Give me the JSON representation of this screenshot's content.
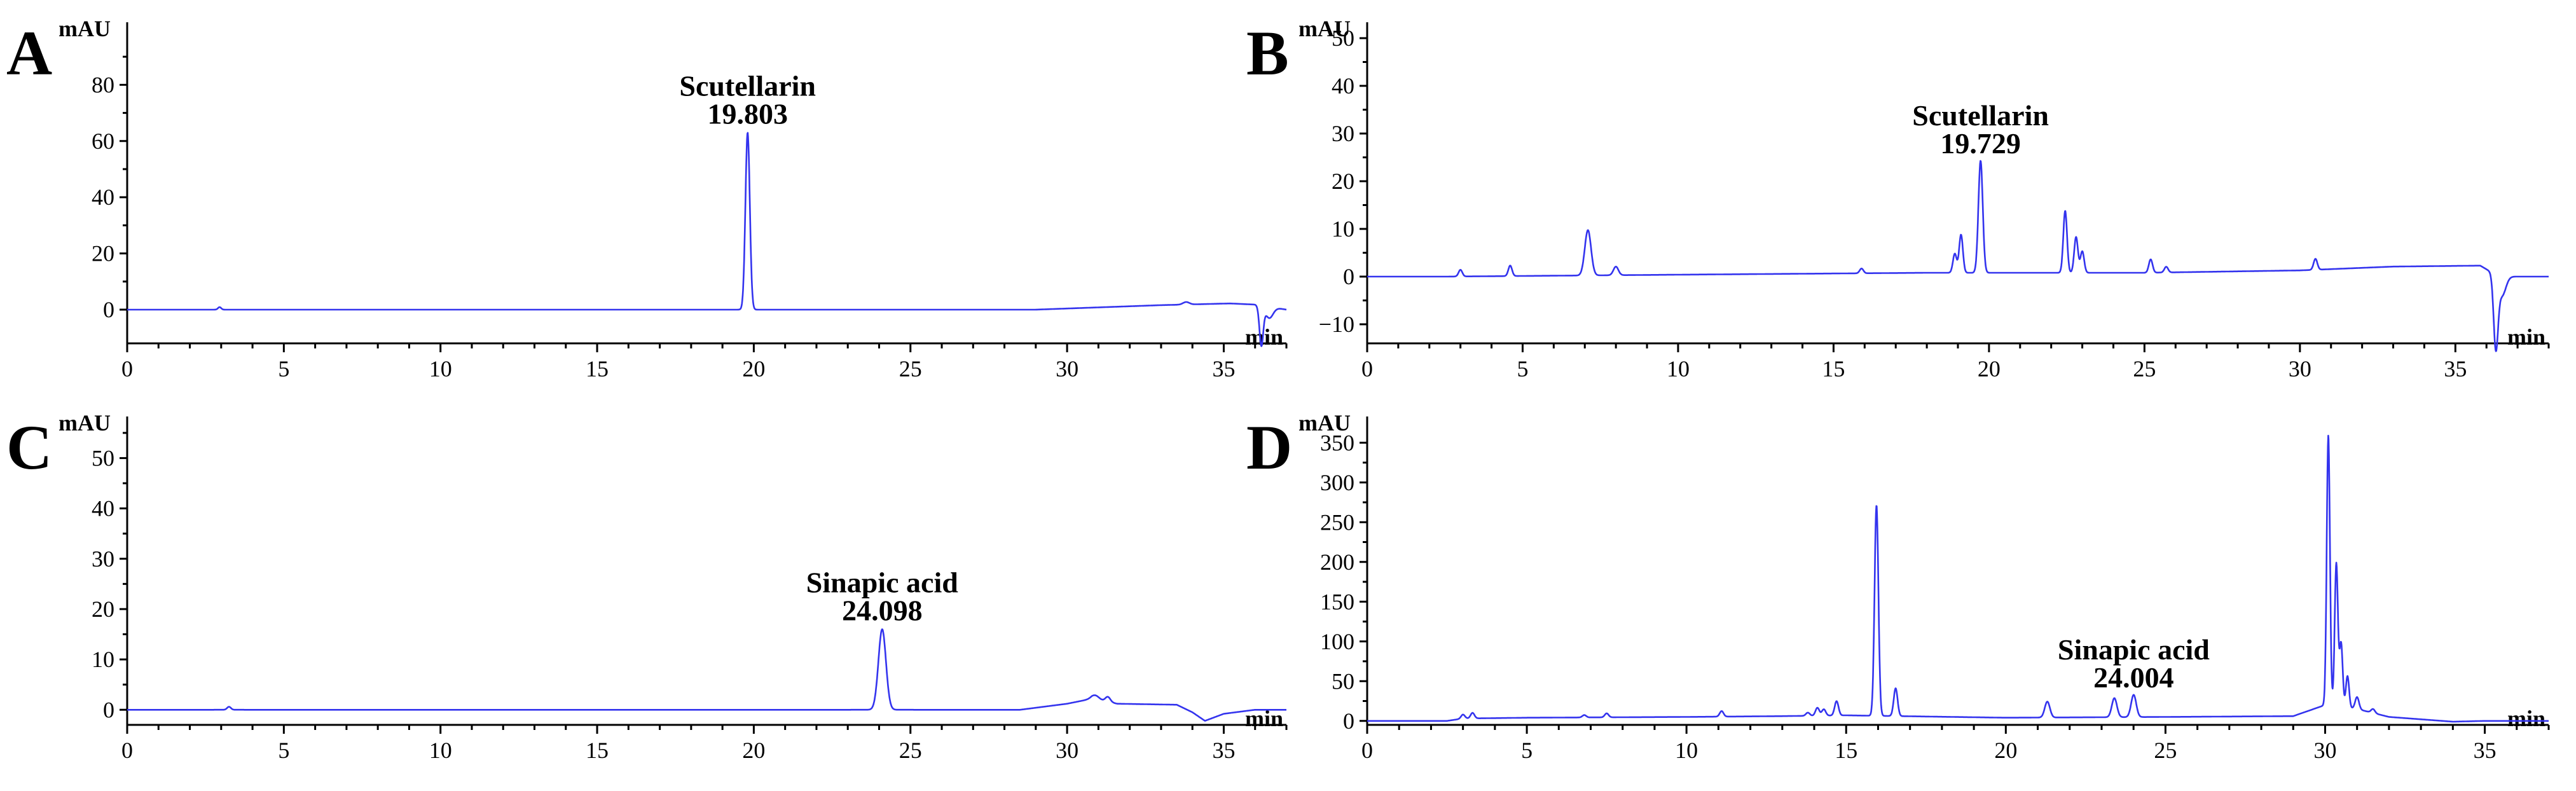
{
  "chart_data": [
    {
      "panel": "A",
      "type": "line",
      "ylabel": "mAU",
      "xlabel": "min",
      "xlim": [
        0,
        37
      ],
      "ylim": [
        -12,
        100
      ],
      "xticks": [
        0,
        5,
        10,
        15,
        20,
        25,
        30,
        35
      ],
      "yticks": [
        0,
        20,
        40,
        60,
        80
      ],
      "color": "#3333ee",
      "series": [
        {
          "baseline": [
            [
              0,
              0
            ],
            [
              3,
              0
            ],
            [
              29,
              0
            ],
            [
              31,
              0.8
            ],
            [
              33,
              1.6
            ],
            [
              35.2,
              2.2
            ],
            [
              36,
              1.8
            ],
            [
              37,
              0
            ]
          ],
          "peaks": [
            [
              19.803,
              63,
              0.07
            ],
            [
              2.95,
              0.9,
              0.05
            ],
            [
              33.8,
              0.9,
              0.1
            ],
            [
              36.2,
              -14,
              0.06
            ],
            [
              36.45,
              -4,
              0.12
            ]
          ]
        }
      ],
      "annotations": [
        {
          "x": 19.803,
          "y": 63,
          "name": "Scutellarin",
          "time": "19.803"
        }
      ]
    },
    {
      "panel": "B",
      "type": "line",
      "ylabel": "mAU",
      "xlabel": "min",
      "xlim": [
        0,
        38
      ],
      "ylim": [
        -14,
        52
      ],
      "xticks": [
        0,
        5,
        10,
        15,
        20,
        25,
        30,
        35
      ],
      "yticks": [
        -10,
        0,
        10,
        20,
        30,
        40,
        50
      ],
      "color": "#3333ee",
      "series": [
        {
          "baseline": [
            [
              0,
              0
            ],
            [
              2.5,
              0
            ],
            [
              10,
              0.4
            ],
            [
              18,
              0.8
            ],
            [
              25,
              0.8
            ],
            [
              30,
              1.3
            ],
            [
              33,
              2.1
            ],
            [
              35.8,
              2.3
            ],
            [
              36.4,
              0
            ],
            [
              38,
              0
            ]
          ],
          "peaks": [
            [
              3.0,
              1.4,
              0.06
            ],
            [
              4.6,
              2.2,
              0.06
            ],
            [
              7.1,
              9.5,
              0.1
            ],
            [
              8.0,
              1.8,
              0.08
            ],
            [
              15.9,
              1.0,
              0.06
            ],
            [
              18.9,
              4,
              0.06
            ],
            [
              19.1,
              8,
              0.06
            ],
            [
              19.729,
              23.5,
              0.07
            ],
            [
              22.45,
              13,
              0.06
            ],
            [
              22.8,
              7.5,
              0.06
            ],
            [
              23.0,
              4.5,
              0.06
            ],
            [
              25.2,
              2.8,
              0.06
            ],
            [
              25.7,
              1.2,
              0.06
            ],
            [
              30.5,
              2.3,
              0.06
            ],
            [
              36.3,
              -15,
              0.07
            ],
            [
              36.5,
              -4,
              0.12
            ]
          ]
        }
      ],
      "annotations": [
        {
          "x": 19.729,
          "y": 24,
          "name": "Scutellarin",
          "time": "19.729"
        }
      ]
    },
    {
      "panel": "C",
      "type": "line",
      "ylabel": "mAU",
      "xlabel": "min",
      "xlim": [
        0,
        37
      ],
      "ylim": [
        -3,
        57
      ],
      "xticks": [
        0,
        5,
        10,
        15,
        20,
        25,
        30,
        35
      ],
      "yticks": [
        0,
        10,
        20,
        30,
        40,
        50
      ],
      "color": "#3333ee",
      "series": [
        {
          "baseline": [
            [
              0,
              0
            ],
            [
              28.5,
              0
            ],
            [
              30,
              1.2
            ],
            [
              30.8,
              2.2
            ],
            [
              31.6,
              1.2
            ],
            [
              33.5,
              1.0
            ],
            [
              34,
              -0.5
            ],
            [
              34.4,
              -2.2
            ],
            [
              35,
              -0.8
            ],
            [
              36,
              0
            ],
            [
              37,
              0
            ]
          ],
          "peaks": [
            [
              24.098,
              16,
              0.12
            ],
            [
              3.25,
              0.6,
              0.06
            ],
            [
              30.9,
              0.8,
              0.12
            ],
            [
              31.3,
              1.0,
              0.08
            ]
          ]
        }
      ],
      "annotations": [
        {
          "x": 24.098,
          "y": 16,
          "name": "Sinapic acid",
          "time": "24.098"
        }
      ]
    },
    {
      "panel": "D",
      "type": "line",
      "ylabel": "mAU",
      "xlabel": "min",
      "xlim": [
        0,
        37
      ],
      "ylim": [
        -5,
        375
      ],
      "xticks": [
        0,
        5,
        10,
        15,
        20,
        25,
        30,
        35
      ],
      "yticks": [
        0,
        50,
        100,
        150,
        200,
        250,
        300,
        350
      ],
      "color": "#3333ee",
      "series": [
        {
          "baseline": [
            [
              0,
              0
            ],
            [
              2.5,
              0
            ],
            [
              3,
              3
            ],
            [
              5,
              4
            ],
            [
              10,
              5
            ],
            [
              13,
              6
            ],
            [
              15,
              7
            ],
            [
              20,
              4
            ],
            [
              25,
              5
            ],
            [
              29,
              6
            ],
            [
              30,
              20
            ],
            [
              31,
              15
            ],
            [
              32,
              5
            ],
            [
              33,
              2
            ],
            [
              34,
              -1
            ],
            [
              35,
              0
            ],
            [
              37,
              0
            ]
          ],
          "peaks": [
            [
              3.0,
              5,
              0.06
            ],
            [
              3.3,
              7,
              0.06
            ],
            [
              6.8,
              3,
              0.06
            ],
            [
              7.5,
              5,
              0.06
            ],
            [
              11.1,
              7,
              0.06
            ],
            [
              13.8,
              4,
              0.06
            ],
            [
              14.1,
              10,
              0.06
            ],
            [
              14.3,
              8,
              0.06
            ],
            [
              14.7,
              18,
              0.06
            ],
            [
              15.95,
              265,
              0.06
            ],
            [
              16.55,
              35,
              0.06
            ],
            [
              21.3,
              20,
              0.08
            ],
            [
              23.4,
              24,
              0.08
            ],
            [
              24.004,
              28,
              0.08
            ],
            [
              30.1,
              340,
              0.05
            ],
            [
              30.35,
              180,
              0.05
            ],
            [
              30.5,
              80,
              0.05
            ],
            [
              30.7,
              40,
              0.05
            ],
            [
              31.0,
              15,
              0.06
            ],
            [
              31.5,
              5,
              0.06
            ]
          ]
        }
      ],
      "annotations": [
        {
          "x": 24.004,
          "y": 31,
          "name": "Sinapic acid",
          "time": "24.004"
        }
      ]
    }
  ]
}
